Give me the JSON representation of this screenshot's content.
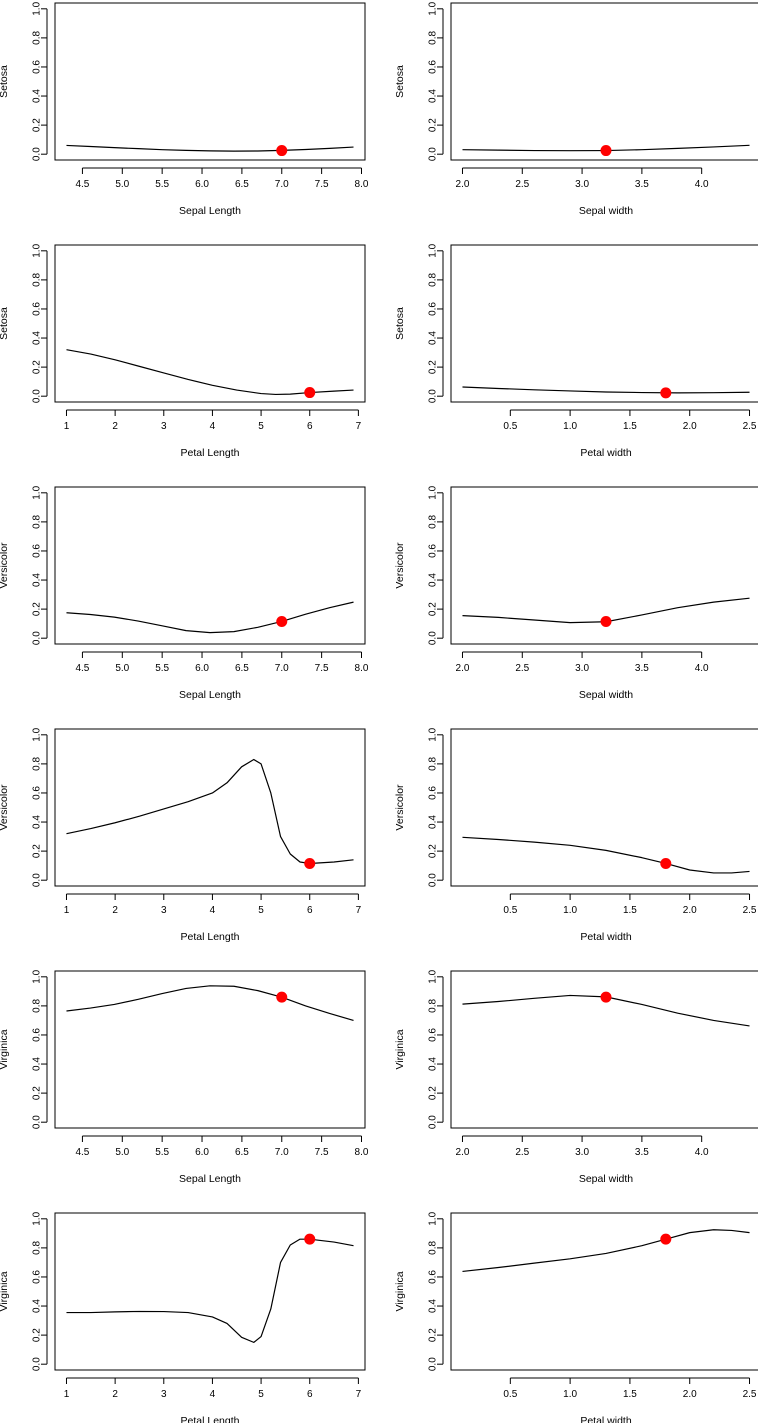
{
  "chart_data": [
    {
      "type": "line",
      "ylabel": "Setosa",
      "xlabel": "Sepal Length",
      "xlim": [
        4.3,
        7.9
      ],
      "ylim": [
        0,
        1
      ],
      "xticks": [
        "4.5",
        "5.0",
        "5.5",
        "6.0",
        "6.5",
        "7.0",
        "7.5",
        "8.0"
      ],
      "yticks": [
        "0.0",
        "0.2",
        "0.4",
        "0.6",
        "0.8",
        "1.0"
      ],
      "x": [
        4.3,
        4.6,
        4.9,
        5.2,
        5.5,
        5.8,
        6.1,
        6.4,
        6.7,
        7.0,
        7.3,
        7.6,
        7.9
      ],
      "y": [
        0.06,
        0.053,
        0.045,
        0.038,
        0.031,
        0.026,
        0.023,
        0.021,
        0.022,
        0.026,
        0.032,
        0.04,
        0.049
      ],
      "highlight": {
        "x": 7.0,
        "y": 0.025,
        "color": "#ff0000"
      }
    },
    {
      "type": "line",
      "ylabel": "Setosa",
      "xlabel": "Sepal width",
      "xlim": [
        2.0,
        4.4
      ],
      "ylim": [
        0,
        1
      ],
      "xticks": [
        "2.0",
        "2.5",
        "3.0",
        "3.5",
        "4.0"
      ],
      "yticks": [
        "0.0",
        "0.2",
        "0.4",
        "0.6",
        "0.8",
        "1.0"
      ],
      "x": [
        2.0,
        2.3,
        2.6,
        2.9,
        3.2,
        3.5,
        3.8,
        4.1,
        4.4
      ],
      "y": [
        0.031,
        0.028,
        0.025,
        0.024,
        0.025,
        0.031,
        0.04,
        0.05,
        0.061
      ],
      "highlight": {
        "x": 3.2,
        "y": 0.025,
        "color": "#ff0000"
      }
    },
    {
      "type": "line",
      "ylabel": "Setosa",
      "xlabel": "Petal Length",
      "xlim": [
        1.0,
        6.9
      ],
      "ylim": [
        0,
        1
      ],
      "xticks": [
        "1",
        "2",
        "3",
        "4",
        "5",
        "6",
        "7"
      ],
      "yticks": [
        "0.0",
        "0.2",
        "0.4",
        "0.6",
        "0.8",
        "1.0"
      ],
      "x": [
        1.0,
        1.5,
        2.0,
        2.5,
        3.0,
        3.5,
        4.0,
        4.5,
        5.0,
        5.3,
        5.6,
        6.0,
        6.5,
        6.9
      ],
      "y": [
        0.32,
        0.29,
        0.25,
        0.205,
        0.16,
        0.115,
        0.075,
        0.042,
        0.018,
        0.012,
        0.014,
        0.025,
        0.035,
        0.042
      ],
      "highlight": {
        "x": 6.0,
        "y": 0.025,
        "color": "#ff0000"
      }
    },
    {
      "type": "line",
      "ylabel": "Setosa",
      "xlabel": "Petal width",
      "xlim": [
        0.1,
        2.5
      ],
      "ylim": [
        0,
        1
      ],
      "xticks": [
        "0.5",
        "1.0",
        "1.5",
        "2.0",
        "2.5"
      ],
      "yticks": [
        "0.0",
        "0.2",
        "0.4",
        "0.6",
        "0.8",
        "1.0"
      ],
      "x": [
        0.1,
        0.4,
        0.7,
        1.0,
        1.3,
        1.6,
        1.9,
        2.2,
        2.5
      ],
      "y": [
        0.063,
        0.053,
        0.044,
        0.036,
        0.029,
        0.025,
        0.023,
        0.024,
        0.027
      ],
      "highlight": {
        "x": 1.8,
        "y": 0.023,
        "color": "#ff0000"
      }
    },
    {
      "type": "line",
      "ylabel": "Versicolor",
      "xlabel": "Sepal Length",
      "xlim": [
        4.3,
        7.9
      ],
      "ylim": [
        0,
        1
      ],
      "xticks": [
        "4.5",
        "5.0",
        "5.5",
        "6.0",
        "6.5",
        "7.0",
        "7.5",
        "8.0"
      ],
      "yticks": [
        "0.0",
        "0.2",
        "0.4",
        "0.6",
        "0.8",
        "1.0"
      ],
      "x": [
        4.3,
        4.6,
        4.9,
        5.2,
        5.5,
        5.8,
        6.1,
        6.4,
        6.7,
        7.0,
        7.3,
        7.6,
        7.9
      ],
      "y": [
        0.175,
        0.163,
        0.145,
        0.118,
        0.085,
        0.052,
        0.038,
        0.045,
        0.075,
        0.115,
        0.165,
        0.21,
        0.248
      ],
      "highlight": {
        "x": 7.0,
        "y": 0.115,
        "color": "#ff0000"
      }
    },
    {
      "type": "line",
      "ylabel": "Versicolor",
      "xlabel": "Sepal width",
      "xlim": [
        2.0,
        4.4
      ],
      "ylim": [
        0,
        1
      ],
      "xticks": [
        "2.0",
        "2.5",
        "3.0",
        "3.5",
        "4.0"
      ],
      "yticks": [
        "0.0",
        "0.2",
        "0.4",
        "0.6",
        "0.8",
        "1.0"
      ],
      "x": [
        2.0,
        2.3,
        2.6,
        2.9,
        3.2,
        3.5,
        3.8,
        4.1,
        4.4
      ],
      "y": [
        0.155,
        0.143,
        0.125,
        0.107,
        0.113,
        0.16,
        0.21,
        0.248,
        0.275
      ],
      "highlight": {
        "x": 3.2,
        "y": 0.115,
        "color": "#ff0000"
      }
    },
    {
      "type": "line",
      "ylabel": "Versicolor",
      "xlabel": "Petal Length",
      "xlim": [
        1.0,
        6.9
      ],
      "ylim": [
        0,
        1
      ],
      "xticks": [
        "1",
        "2",
        "3",
        "4",
        "5",
        "6",
        "7"
      ],
      "yticks": [
        "0.0",
        "0.2",
        "0.4",
        "0.6",
        "0.8",
        "1.0"
      ],
      "x": [
        1.0,
        1.5,
        2.0,
        2.5,
        3.0,
        3.5,
        4.0,
        4.3,
        4.6,
        4.85,
        5.0,
        5.2,
        5.4,
        5.6,
        5.8,
        6.0,
        6.5,
        6.9
      ],
      "y": [
        0.32,
        0.355,
        0.395,
        0.44,
        0.49,
        0.54,
        0.6,
        0.67,
        0.78,
        0.83,
        0.8,
        0.6,
        0.3,
        0.18,
        0.125,
        0.115,
        0.125,
        0.14
      ],
      "highlight": {
        "x": 6.0,
        "y": 0.115,
        "color": "#ff0000"
      }
    },
    {
      "type": "line",
      "ylabel": "Versicolor",
      "xlabel": "Petal width",
      "xlim": [
        0.1,
        2.5
      ],
      "ylim": [
        0,
        1
      ],
      "xticks": [
        "0.5",
        "1.0",
        "1.5",
        "2.0",
        "2.5"
      ],
      "yticks": [
        "0.0",
        "0.2",
        "0.4",
        "0.6",
        "0.8",
        "1.0"
      ],
      "x": [
        0.1,
        0.4,
        0.7,
        1.0,
        1.3,
        1.6,
        1.8,
        2.0,
        2.2,
        2.35,
        2.5
      ],
      "y": [
        0.295,
        0.28,
        0.262,
        0.24,
        0.205,
        0.155,
        0.115,
        0.07,
        0.05,
        0.05,
        0.06
      ],
      "highlight": {
        "x": 1.8,
        "y": 0.115,
        "color": "#ff0000"
      }
    },
    {
      "type": "line",
      "ylabel": "Virginica",
      "xlabel": "Sepal Length",
      "xlim": [
        4.3,
        7.9
      ],
      "ylim": [
        0,
        1
      ],
      "xticks": [
        "4.5",
        "5.0",
        "5.5",
        "6.0",
        "6.5",
        "7.0",
        "7.5",
        "8.0"
      ],
      "yticks": [
        "0.0",
        "0.2",
        "0.4",
        "0.6",
        "0.8",
        "1.0"
      ],
      "x": [
        4.3,
        4.6,
        4.9,
        5.2,
        5.5,
        5.8,
        6.1,
        6.4,
        6.7,
        7.0,
        7.3,
        7.6,
        7.9
      ],
      "y": [
        0.765,
        0.785,
        0.81,
        0.845,
        0.885,
        0.92,
        0.938,
        0.935,
        0.905,
        0.86,
        0.8,
        0.748,
        0.7
      ],
      "highlight": {
        "x": 7.0,
        "y": 0.86,
        "color": "#ff0000"
      }
    },
    {
      "type": "line",
      "ylabel": "Virginica",
      "xlabel": "Sepal width",
      "xlim": [
        2.0,
        4.4
      ],
      "ylim": [
        0,
        1
      ],
      "xticks": [
        "2.0",
        "2.5",
        "3.0",
        "3.5",
        "4.0"
      ],
      "yticks": [
        "0.0",
        "0.2",
        "0.4",
        "0.6",
        "0.8",
        "1.0"
      ],
      "x": [
        2.0,
        2.3,
        2.6,
        2.9,
        3.2,
        3.5,
        3.8,
        4.1,
        4.4
      ],
      "y": [
        0.812,
        0.83,
        0.852,
        0.872,
        0.862,
        0.81,
        0.75,
        0.7,
        0.662
      ],
      "highlight": {
        "x": 3.2,
        "y": 0.86,
        "color": "#ff0000"
      }
    },
    {
      "type": "line",
      "ylabel": "Virginica",
      "xlabel": "Petal Length",
      "xlim": [
        1.0,
        6.9
      ],
      "ylim": [
        0,
        1
      ],
      "xticks": [
        "1",
        "2",
        "3",
        "4",
        "5",
        "6",
        "7"
      ],
      "yticks": [
        "0.0",
        "0.2",
        "0.4",
        "0.6",
        "0.8",
        "1.0"
      ],
      "x": [
        1.0,
        1.5,
        2.0,
        2.5,
        3.0,
        3.5,
        4.0,
        4.3,
        4.6,
        4.85,
        5.0,
        5.2,
        5.4,
        5.6,
        5.8,
        6.0,
        6.5,
        6.9
      ],
      "y": [
        0.355,
        0.355,
        0.36,
        0.363,
        0.362,
        0.355,
        0.325,
        0.28,
        0.185,
        0.15,
        0.19,
        0.38,
        0.7,
        0.82,
        0.86,
        0.86,
        0.84,
        0.815
      ],
      "highlight": {
        "x": 6.0,
        "y": 0.86,
        "color": "#ff0000"
      }
    },
    {
      "type": "line",
      "ylabel": "Virginica",
      "xlabel": "Petal width",
      "xlim": [
        0.1,
        2.5
      ],
      "ylim": [
        0,
        1
      ],
      "xticks": [
        "0.5",
        "1.0",
        "1.5",
        "2.0",
        "2.5"
      ],
      "yticks": [
        "0.0",
        "0.2",
        "0.4",
        "0.6",
        "0.8",
        "1.0"
      ],
      "x": [
        0.1,
        0.4,
        0.7,
        1.0,
        1.3,
        1.6,
        1.8,
        2.0,
        2.2,
        2.35,
        2.5
      ],
      "y": [
        0.638,
        0.665,
        0.695,
        0.725,
        0.762,
        0.815,
        0.86,
        0.905,
        0.925,
        0.92,
        0.905
      ],
      "highlight": {
        "x": 1.8,
        "y": 0.86,
        "color": "#ff0000"
      }
    }
  ]
}
